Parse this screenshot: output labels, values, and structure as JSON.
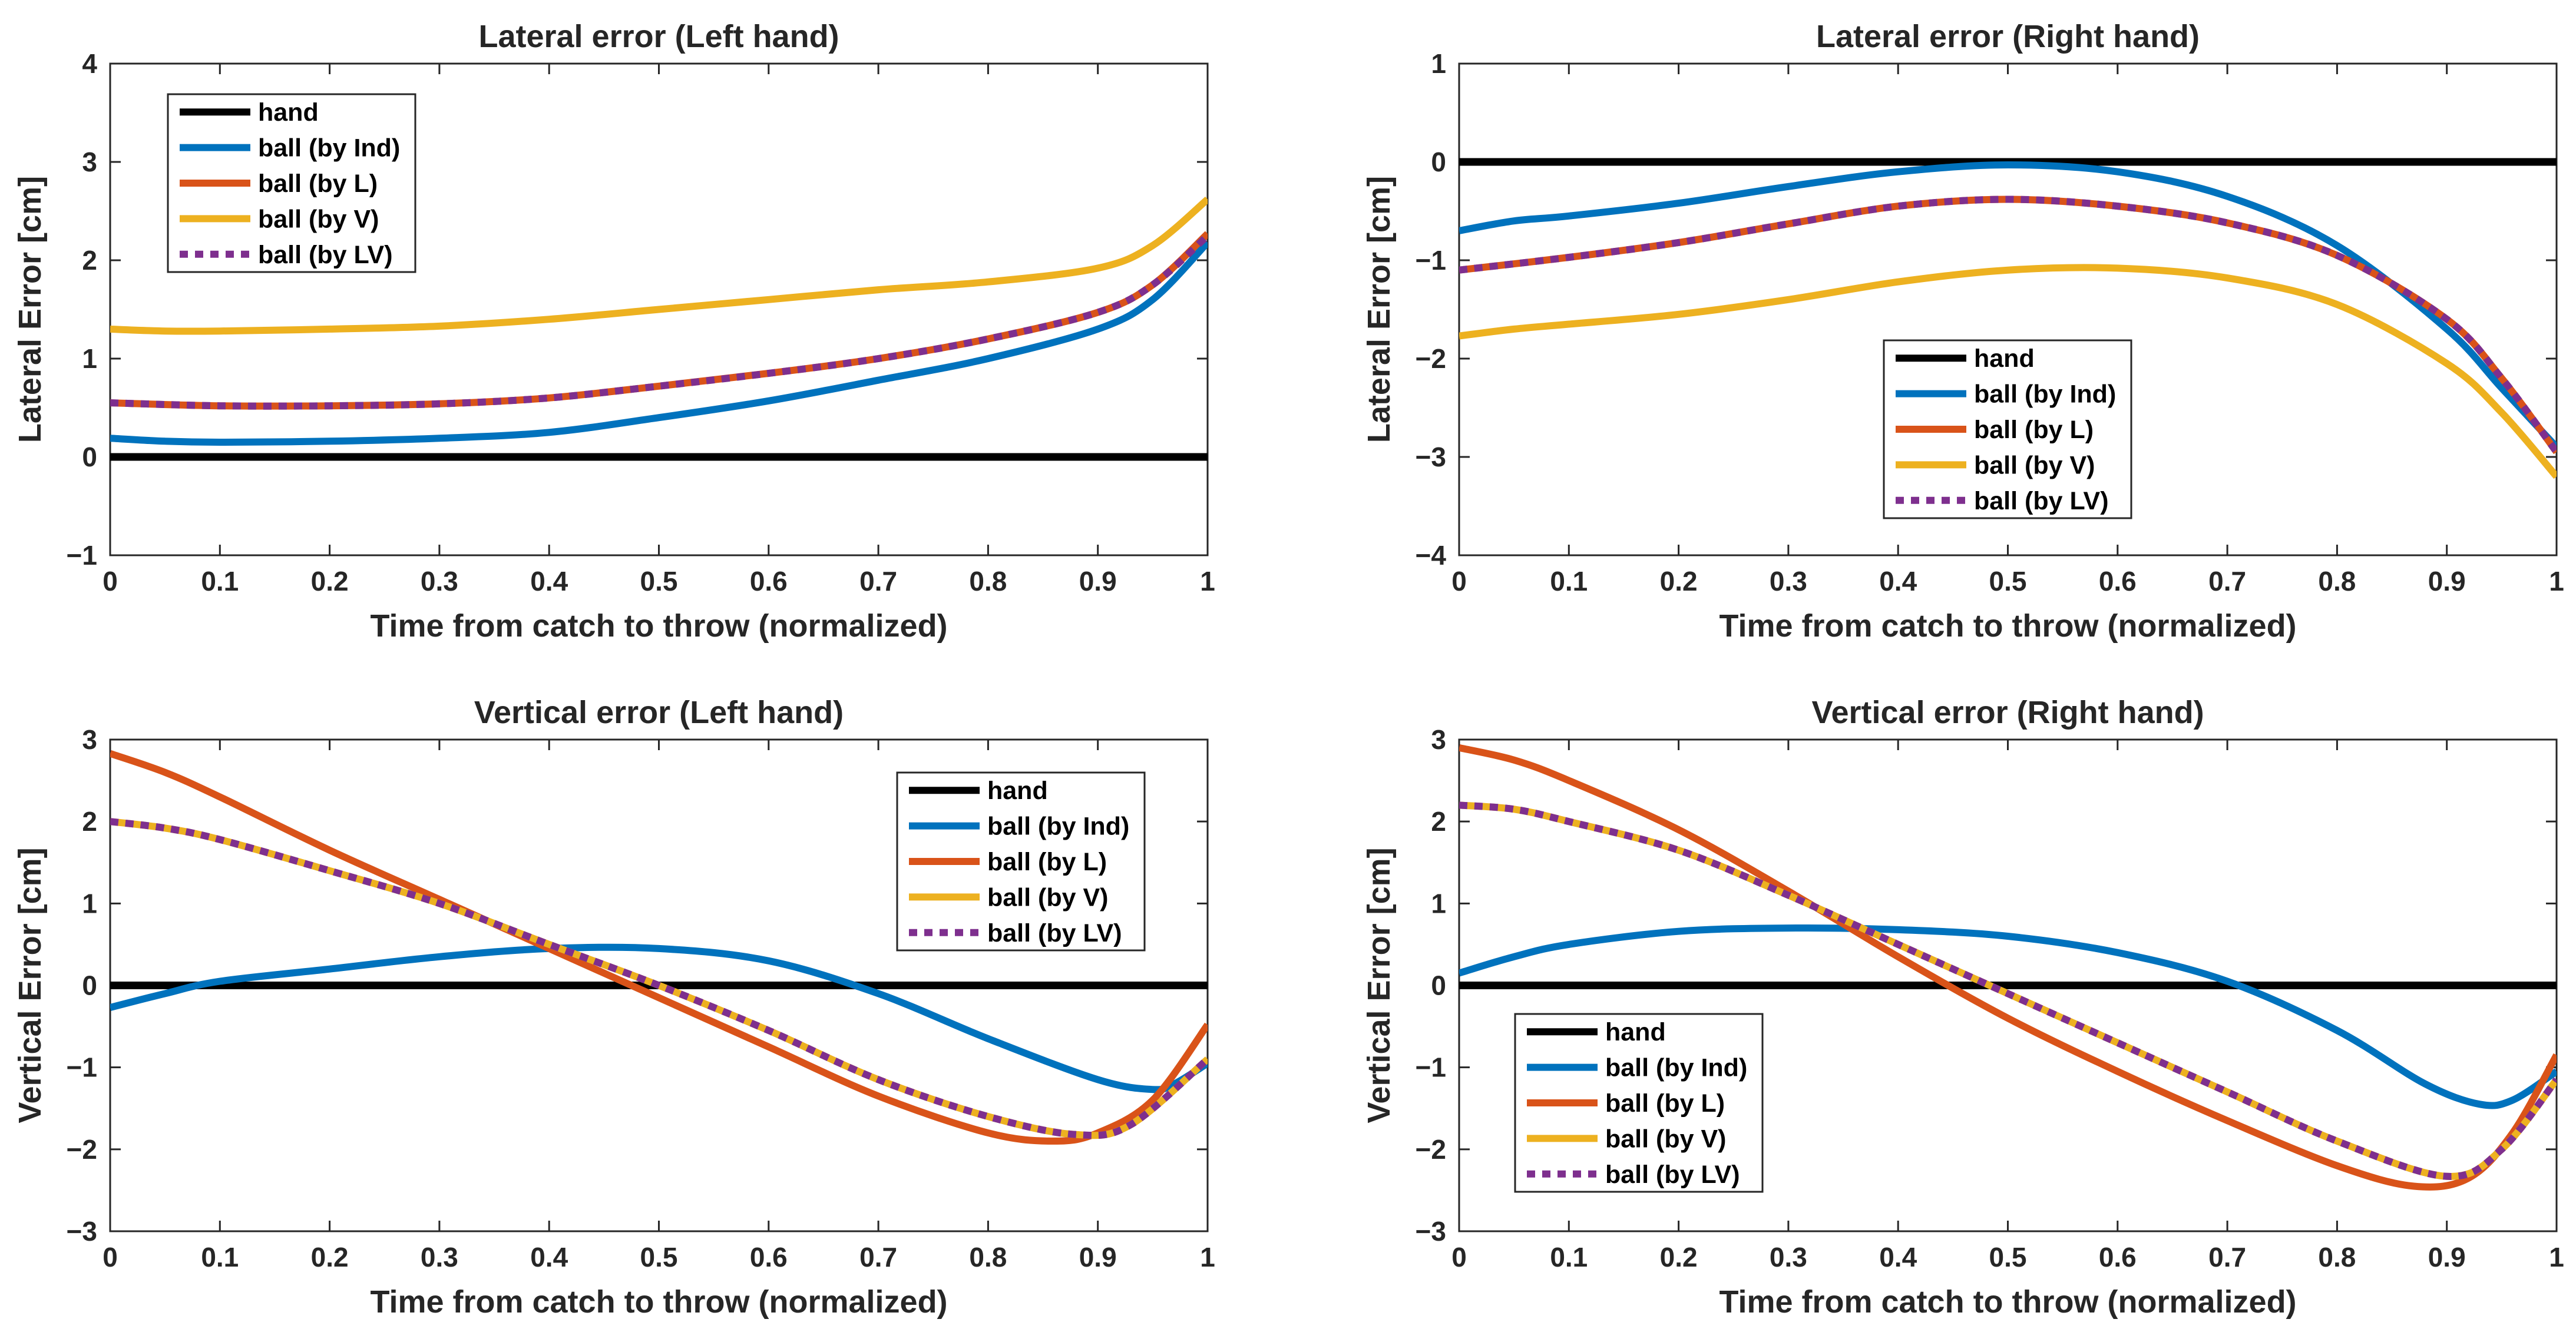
{
  "chart_data": [
    {
      "type": "line",
      "title": "Lateral error (Left hand)",
      "xlabel": "Time from catch to throw (normalized)",
      "ylabel": "Lateral Error [cm]",
      "xlim": [
        0,
        1
      ],
      "ylim": [
        -1,
        4
      ],
      "xticks": [
        "0",
        "0.1",
        "0.2",
        "0.3",
        "0.4",
        "0.5",
        "0.6",
        "0.7",
        "0.8",
        "0.9",
        "1"
      ],
      "yticks": [
        "4",
        "3",
        "2",
        "1",
        "0",
        "−1"
      ],
      "legend_position": "top-left",
      "legend": [
        "hand",
        "ball (by Ind)",
        "ball (by L)",
        "ball (by V)",
        "ball (by LV)"
      ],
      "series": [
        {
          "name": "hand",
          "color": "#000000",
          "style": "solid",
          "x": [
            0,
            1
          ],
          "y": [
            0,
            0
          ]
        },
        {
          "name": "ball (by Ind)",
          "color": "#0072BD",
          "style": "solid",
          "x": [
            0,
            0.05,
            0.1,
            0.2,
            0.3,
            0.4,
            0.5,
            0.6,
            0.7,
            0.8,
            0.9,
            0.95,
            1
          ],
          "y": [
            0.19,
            0.16,
            0.15,
            0.16,
            0.19,
            0.25,
            0.4,
            0.57,
            0.78,
            1.0,
            1.3,
            1.6,
            2.18
          ]
        },
        {
          "name": "ball (by L)",
          "color": "#D95319",
          "style": "solid",
          "x": [
            0,
            0.1,
            0.2,
            0.3,
            0.4,
            0.5,
            0.6,
            0.7,
            0.8,
            0.9,
            0.95,
            1
          ],
          "y": [
            0.55,
            0.52,
            0.52,
            0.54,
            0.6,
            0.72,
            0.85,
            1.0,
            1.2,
            1.47,
            1.75,
            2.27
          ]
        },
        {
          "name": "ball (by V)",
          "color": "#EDB120",
          "style": "solid",
          "x": [
            0,
            0.05,
            0.1,
            0.2,
            0.3,
            0.4,
            0.5,
            0.6,
            0.7,
            0.8,
            0.9,
            0.95,
            1
          ],
          "y": [
            1.3,
            1.28,
            1.28,
            1.3,
            1.33,
            1.4,
            1.5,
            1.6,
            1.7,
            1.78,
            1.92,
            2.15,
            2.62
          ]
        },
        {
          "name": "ball (by LV)",
          "color": "#7E2F8E",
          "style": "dotted",
          "x": [
            0,
            0.1,
            0.2,
            0.3,
            0.4,
            0.5,
            0.6,
            0.7,
            0.8,
            0.9,
            0.95,
            1
          ],
          "y": [
            0.55,
            0.52,
            0.52,
            0.54,
            0.6,
            0.72,
            0.85,
            1.0,
            1.2,
            1.47,
            1.75,
            2.25
          ]
        }
      ]
    },
    {
      "type": "line",
      "title": "Lateral error (Right hand)",
      "xlabel": "Time from catch to throw (normalized)",
      "ylabel": "Lateral Error [cm]",
      "xlim": [
        0,
        1
      ],
      "ylim": [
        -4,
        1
      ],
      "xticks": [
        "0",
        "0.1",
        "0.2",
        "0.3",
        "0.4",
        "0.5",
        "0.6",
        "0.7",
        "0.8",
        "0.9",
        "1"
      ],
      "yticks": [
        "1",
        "0",
        "−1",
        "−2",
        "−3",
        "−4"
      ],
      "legend_position": "bottom-center",
      "legend": [
        "hand",
        "ball (by Ind)",
        "ball (by L)",
        "ball (by V)",
        "ball (by LV)"
      ],
      "series": [
        {
          "name": "hand",
          "color": "#000000",
          "style": "solid",
          "x": [
            0,
            1
          ],
          "y": [
            0,
            0
          ]
        },
        {
          "name": "ball (by Ind)",
          "color": "#0072BD",
          "style": "solid",
          "x": [
            0,
            0.05,
            0.1,
            0.2,
            0.3,
            0.4,
            0.5,
            0.6,
            0.7,
            0.8,
            0.9,
            0.95,
            1
          ],
          "y": [
            -0.7,
            -0.6,
            -0.55,
            -0.42,
            -0.25,
            -0.1,
            -0.03,
            -0.1,
            -0.35,
            -0.85,
            -1.7,
            -2.3,
            -2.9
          ]
        },
        {
          "name": "ball (by L)",
          "color": "#D95319",
          "style": "solid",
          "x": [
            0,
            0.1,
            0.2,
            0.3,
            0.4,
            0.5,
            0.6,
            0.7,
            0.8,
            0.9,
            0.95,
            1
          ],
          "y": [
            -1.1,
            -0.97,
            -0.82,
            -0.63,
            -0.45,
            -0.38,
            -0.45,
            -0.62,
            -0.95,
            -1.6,
            -2.2,
            -2.95
          ]
        },
        {
          "name": "ball (by V)",
          "color": "#EDB120",
          "style": "solid",
          "x": [
            0,
            0.05,
            0.1,
            0.2,
            0.3,
            0.4,
            0.5,
            0.6,
            0.7,
            0.8,
            0.9,
            0.95,
            1
          ],
          "y": [
            -1.77,
            -1.7,
            -1.65,
            -1.55,
            -1.4,
            -1.22,
            -1.1,
            -1.08,
            -1.18,
            -1.45,
            -2.05,
            -2.55,
            -3.2
          ]
        },
        {
          "name": "ball (by LV)",
          "color": "#7E2F8E",
          "style": "dotted",
          "x": [
            0,
            0.1,
            0.2,
            0.3,
            0.4,
            0.5,
            0.6,
            0.7,
            0.8,
            0.9,
            0.95,
            1
          ],
          "y": [
            -1.1,
            -0.97,
            -0.82,
            -0.63,
            -0.45,
            -0.38,
            -0.45,
            -0.62,
            -0.95,
            -1.6,
            -2.2,
            -2.95
          ]
        }
      ]
    },
    {
      "type": "line",
      "title": "Vertical error (Left hand)",
      "xlabel": "Time from catch to throw (normalized)",
      "ylabel": "Vertical Error [cm]",
      "xlim": [
        0,
        1
      ],
      "ylim": [
        -3,
        3
      ],
      "xticks": [
        "0",
        "0.1",
        "0.2",
        "0.3",
        "0.4",
        "0.5",
        "0.6",
        "0.7",
        "0.8",
        "0.9",
        "1"
      ],
      "yticks": [
        "3",
        "2",
        "1",
        "0",
        "−1",
        "−2",
        "−3"
      ],
      "legend_position": "top-right",
      "legend": [
        "hand",
        "ball (by Ind)",
        "ball (by L)",
        "ball (by V)",
        "ball (by LV)"
      ],
      "series": [
        {
          "name": "hand",
          "color": "#000000",
          "style": "solid",
          "x": [
            0,
            1
          ],
          "y": [
            0,
            0
          ]
        },
        {
          "name": "ball (by Ind)",
          "color": "#0072BD",
          "style": "solid",
          "x": [
            0,
            0.05,
            0.1,
            0.2,
            0.3,
            0.4,
            0.5,
            0.6,
            0.7,
            0.8,
            0.9,
            0.95,
            0.97,
            1
          ],
          "y": [
            -0.27,
            -0.1,
            0.05,
            0.2,
            0.35,
            0.45,
            0.45,
            0.3,
            -0.1,
            -0.65,
            -1.15,
            -1.27,
            -1.2,
            -0.95
          ]
        },
        {
          "name": "ball (by L)",
          "color": "#D95319",
          "style": "solid",
          "x": [
            0,
            0.05,
            0.1,
            0.2,
            0.3,
            0.4,
            0.5,
            0.6,
            0.7,
            0.8,
            0.86,
            0.9,
            0.95,
            1
          ],
          "y": [
            2.83,
            2.6,
            2.3,
            1.65,
            1.05,
            0.45,
            -0.15,
            -0.75,
            -1.35,
            -1.8,
            -1.9,
            -1.8,
            -1.4,
            -0.48
          ]
        },
        {
          "name": "ball (by V)",
          "color": "#EDB120",
          "style": "solid",
          "x": [
            0,
            0.05,
            0.1,
            0.2,
            0.3,
            0.4,
            0.5,
            0.6,
            0.7,
            0.8,
            0.88,
            0.93,
            1
          ],
          "y": [
            2.0,
            1.92,
            1.78,
            1.4,
            1.0,
            0.5,
            0.0,
            -0.55,
            -1.15,
            -1.6,
            -1.82,
            -1.7,
            -0.9
          ]
        },
        {
          "name": "ball (by LV)",
          "color": "#7E2F8E",
          "style": "dotted",
          "x": [
            0,
            0.05,
            0.1,
            0.2,
            0.3,
            0.4,
            0.5,
            0.6,
            0.7,
            0.8,
            0.88,
            0.93,
            1
          ],
          "y": [
            2.0,
            1.92,
            1.78,
            1.4,
            1.0,
            0.5,
            0.0,
            -0.55,
            -1.15,
            -1.6,
            -1.82,
            -1.7,
            -0.9
          ]
        }
      ]
    },
    {
      "type": "line",
      "title": "Vertical error (Right hand)",
      "xlabel": "Time from catch to throw (normalized)",
      "ylabel": "Vertical Error [cm]",
      "xlim": [
        0,
        1
      ],
      "ylim": [
        -3,
        3
      ],
      "xticks": [
        "0",
        "0.1",
        "0.2",
        "0.3",
        "0.4",
        "0.5",
        "0.6",
        "0.7",
        "0.8",
        "0.9",
        "1"
      ],
      "yticks": [
        "3",
        "2",
        "1",
        "0",
        "−1",
        "−2",
        "−3"
      ],
      "legend_position": "bottom-left",
      "legend": [
        "hand",
        "ball (by Ind)",
        "ball (by L)",
        "ball (by V)",
        "ball (by LV)"
      ],
      "series": [
        {
          "name": "hand",
          "color": "#000000",
          "style": "solid",
          "x": [
            0,
            1
          ],
          "y": [
            0,
            0
          ]
        },
        {
          "name": "ball (by Ind)",
          "color": "#0072BD",
          "style": "solid",
          "x": [
            0,
            0.05,
            0.1,
            0.2,
            0.3,
            0.4,
            0.5,
            0.6,
            0.7,
            0.8,
            0.88,
            0.93,
            0.96,
            1
          ],
          "y": [
            0.15,
            0.35,
            0.5,
            0.66,
            0.7,
            0.68,
            0.6,
            0.4,
            0.05,
            -0.55,
            -1.2,
            -1.45,
            -1.4,
            -1.05
          ]
        },
        {
          "name": "ball (by L)",
          "color": "#D95319",
          "style": "solid",
          "x": [
            0,
            0.05,
            0.1,
            0.2,
            0.3,
            0.4,
            0.5,
            0.6,
            0.7,
            0.8,
            0.87,
            0.92,
            0.96,
            1
          ],
          "y": [
            2.9,
            2.75,
            2.5,
            1.9,
            1.15,
            0.35,
            -0.4,
            -1.05,
            -1.65,
            -2.2,
            -2.45,
            -2.35,
            -1.8,
            -0.85
          ]
        },
        {
          "name": "ball (by V)",
          "color": "#EDB120",
          "style": "solid",
          "x": [
            0,
            0.05,
            0.1,
            0.2,
            0.3,
            0.4,
            0.5,
            0.6,
            0.7,
            0.8,
            0.9,
            0.95,
            1
          ],
          "y": [
            2.2,
            2.15,
            2.0,
            1.65,
            1.1,
            0.5,
            -0.1,
            -0.7,
            -1.3,
            -1.9,
            -2.33,
            -2.0,
            -1.15
          ]
        },
        {
          "name": "ball (by LV)",
          "color": "#7E2F8E",
          "style": "dotted",
          "x": [
            0,
            0.05,
            0.1,
            0.2,
            0.3,
            0.4,
            0.5,
            0.6,
            0.7,
            0.8,
            0.9,
            0.95,
            1
          ],
          "y": [
            2.2,
            2.15,
            2.0,
            1.65,
            1.1,
            0.5,
            -0.1,
            -0.7,
            -1.3,
            -1.9,
            -2.33,
            -2.0,
            -1.15
          ]
        }
      ]
    }
  ]
}
